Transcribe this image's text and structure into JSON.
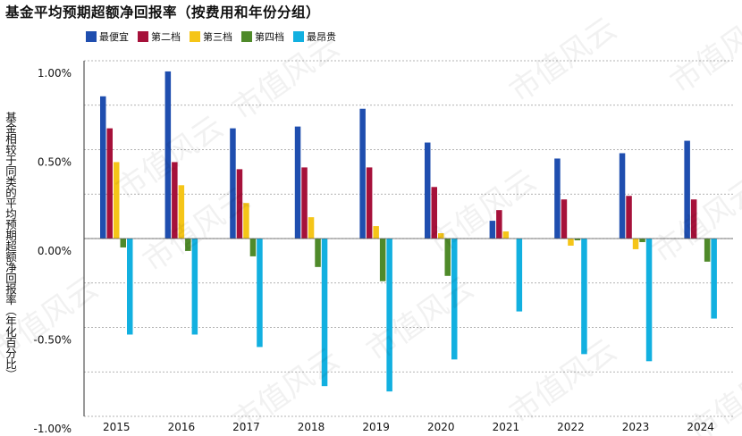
{
  "chart_data": {
    "type": "bar",
    "title": "基金平均预期超额净回报率（按费用和年份分组）",
    "ylabel": "基金相较于同类的平均预期超额净回报率（年化百分比）",
    "xlabel": "",
    "ylim": [
      -1.0,
      1.0
    ],
    "yticks": [
      1.0,
      0.5,
      0.0,
      -0.5,
      -1.0
    ],
    "ytick_labels": [
      "1.00%",
      "0.50%",
      "0.00%",
      "-0.50%",
      "-1.00%"
    ],
    "grid": true,
    "legend_position": "top-left",
    "categories": [
      "2015",
      "2016",
      "2017",
      "2018",
      "2019",
      "2020",
      "2021",
      "2022",
      "2023",
      "2024"
    ],
    "series": [
      {
        "name": "最便宜",
        "color": "#1f4eaf",
        "values": [
          0.8,
          0.94,
          0.62,
          0.63,
          0.73,
          0.54,
          0.1,
          0.45,
          0.48,
          0.55
        ]
      },
      {
        "name": "第二档",
        "color": "#a6113a",
        "values": [
          0.62,
          0.43,
          0.39,
          0.4,
          0.4,
          0.29,
          0.16,
          0.22,
          0.24,
          0.22
        ]
      },
      {
        "name": "第三档",
        "color": "#f5c518",
        "values": [
          0.43,
          0.3,
          0.2,
          0.12,
          0.07,
          0.03,
          0.04,
          -0.04,
          -0.06,
          0.0
        ]
      },
      {
        "name": "第四档",
        "color": "#4f8a2a",
        "values": [
          -0.05,
          -0.07,
          -0.1,
          -0.16,
          -0.24,
          -0.21,
          0.0,
          -0.01,
          -0.02,
          -0.13
        ]
      },
      {
        "name": "最昂贵",
        "color": "#12b0e0",
        "values": [
          -0.54,
          -0.54,
          -0.61,
          -0.83,
          -0.86,
          -0.68,
          -0.41,
          -0.65,
          -0.69,
          -0.45
        ]
      }
    ]
  },
  "watermark": "市值风云"
}
